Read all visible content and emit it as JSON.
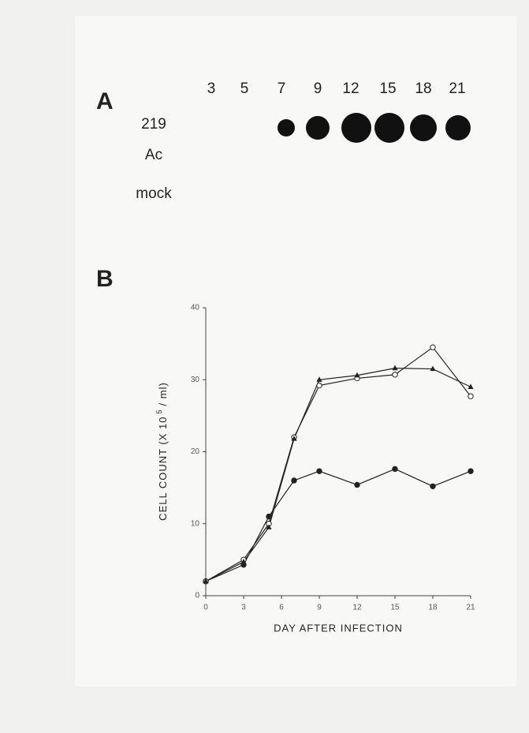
{
  "panel_a": {
    "label": "A",
    "columns": [
      "3",
      "5",
      "7",
      "9",
      "12",
      "15",
      "18",
      "21"
    ],
    "rows": [
      "219",
      "Ac",
      "mock"
    ]
  },
  "chart_data": {
    "type": "line",
    "panel_label": "B",
    "x_label": "DAY AFTER INFECTION",
    "y_label": "CELL COUNT (X 10",
    "y_label_exponent": "5",
    "y_label_unit": "/ ml)",
    "x": [
      0,
      3,
      5,
      7,
      9,
      12,
      15,
      18,
      21
    ],
    "series": [
      {
        "color": "#222222",
        "marker": "filled-circle",
        "values": [
          2,
          4.3,
          11,
          16,
          17.3,
          15.4,
          17.6,
          15.2,
          17.3
        ]
      },
      {
        "color": "#222222",
        "marker": "open-circle",
        "values": [
          2,
          5,
          10,
          22,
          29.2,
          30.2,
          30.7,
          34.5,
          27.7
        ]
      },
      {
        "color": "#222222",
        "marker": "triangle",
        "values": [
          2,
          4.7,
          9.5,
          21.8,
          30,
          30.6,
          31.6,
          31.5,
          29
        ]
      }
    ],
    "xlim": [
      0,
      21
    ],
    "ylim": [
      0,
      40
    ],
    "xticks": [
      0,
      3,
      6,
      9,
      12,
      15,
      18,
      21
    ],
    "yticks": [
      0,
      10,
      20,
      30,
      40
    ]
  }
}
